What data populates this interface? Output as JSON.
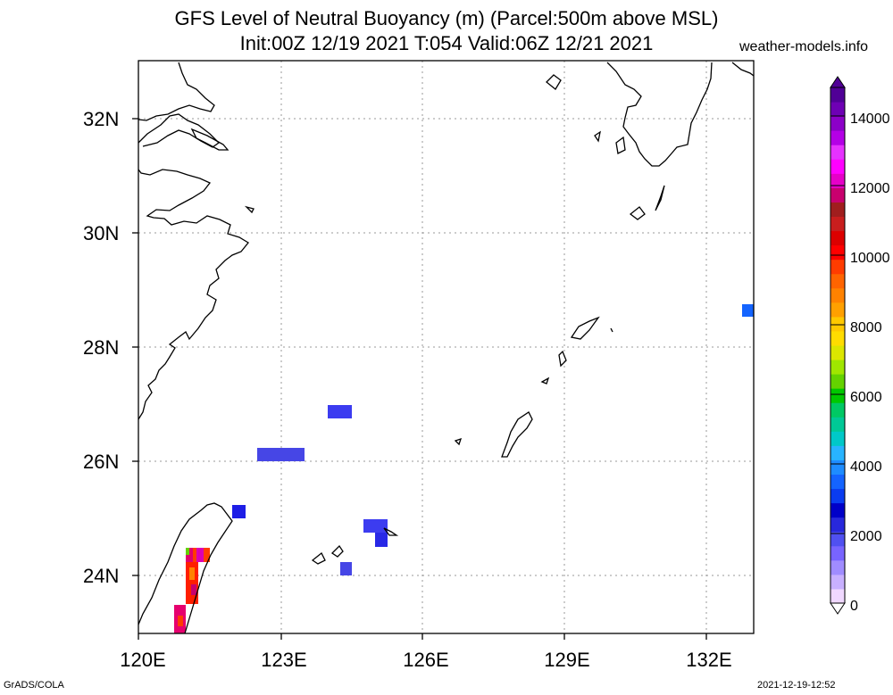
{
  "title_line1": "GFS Level of Neutral Buoyancy (m) (Parcel:500m above MSL)",
  "title_line2": "Init:00Z 12/19 2021 T:054 Valid:06Z 12/21 2021",
  "site": "weather-models.info",
  "footer_left": "GrADS/COLA",
  "footer_right": "2021-12-19-12:52",
  "axes": {
    "lon_ticks": [
      "120E",
      "123E",
      "126E",
      "129E",
      "132E"
    ],
    "lat_ticks": [
      "32N",
      "30N",
      "28N",
      "26N",
      "24N"
    ]
  },
  "colorbar": {
    "labels": [
      "14000",
      "12000",
      "10000",
      "8000",
      "6000",
      "4000",
      "2000",
      "0"
    ],
    "colors": [
      "#f0d8ff",
      "#c8b0ff",
      "#a08cff",
      "#7864ff",
      "#5050f0",
      "#2828dc",
      "#0000c8",
      "#0a3cf0",
      "#1464ff",
      "#1e8cff",
      "#28b4ff",
      "#00c8c8",
      "#00c896",
      "#00c864",
      "#00c800",
      "#64d200",
      "#a0e600",
      "#dce600",
      "#ffdc00",
      "#ffc800",
      "#ffa000",
      "#ff8200",
      "#ff6400",
      "#ff3c00",
      "#ff0000",
      "#dc0000",
      "#c81e1e",
      "#a01e1e",
      "#c8006e",
      "#e600c8",
      "#ff00ff",
      "#e632ff",
      "#b400e6",
      "#8c00c8",
      "#6e00b4",
      "#500096"
    ]
  }
}
